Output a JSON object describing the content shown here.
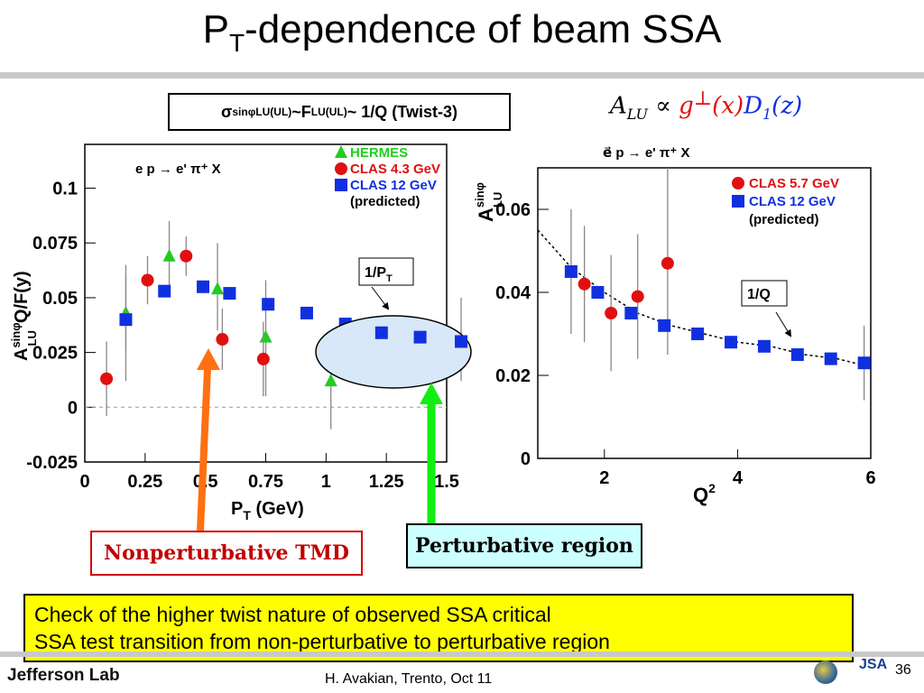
{
  "slide": {
    "title_main": "P",
    "title_sub": "T",
    "title_rest": "-dependence of beam SSA",
    "footer_logo": "Jefferson Lab",
    "footer_text": "H. Avakian, Trento, Oct 11",
    "page_number": "36",
    "jsa_logo": "JSA"
  },
  "formula_box": {
    "sigma": "σ",
    "sin_phi": "sinφ",
    "sub1": "LU(UL)",
    "tilde1": " ~F",
    "sub2": "LU(UL)",
    "rest": "~ 1/Q (Twist-3)"
  },
  "alu_formula": {
    "A": "A",
    "A_sub": "LU",
    "prop": " ∝ ",
    "g": "g",
    "g_sup": "⊥",
    "gx": "(x)",
    "D": "D",
    "D_sub": "1",
    "Dz": "(z)"
  },
  "annotations": {
    "nonperturbative": "Nonperturbative TMD",
    "perturbative": "Perturbative region",
    "summary_line1": "Check of the higher twist nature of observed SSA critical",
    "summary_line2": "SSA test transition from non-perturbative to perturbative region"
  },
  "colors": {
    "hermes": "#22cc22",
    "clas": "#e01010",
    "clas12": "#1030e0",
    "nonpert_arrow": "#ff7010",
    "pert_arrow": "#11ee11",
    "ellipse_fill": "#d8e8f8"
  },
  "chart_data": [
    {
      "type": "scatter",
      "process": "e p → e' π⁺ X",
      "xlabel_main": "P",
      "xlabel_sub": "T",
      "xlabel_unit": " (GeV)",
      "ylabel_A": "A",
      "ylabel_sup": "sinφ",
      "ylabel_sub": "LU",
      "ylabel_rest": "Q/F(y)",
      "xlim": [
        0,
        1.5
      ],
      "ylim": [
        -0.025,
        0.12
      ],
      "x_ticks": [
        "0",
        "0.25",
        "0.5",
        "0.75",
        "1",
        "1.25",
        "1.5"
      ],
      "x_tick_values": [
        0,
        0.25,
        0.5,
        0.75,
        1,
        1.25,
        1.5
      ],
      "y_ticks": [
        "-0.025",
        "0",
        "0.025",
        "0.05",
        "0.075",
        "0.1"
      ],
      "y_tick_values": [
        -0.025,
        0,
        0.025,
        0.05,
        0.075,
        0.1
      ],
      "annotation": "1/P",
      "annotation_sub": "T",
      "series": [
        {
          "name": "HERMES",
          "marker": "triangle",
          "points": [
            {
              "x": 0.17,
              "y": 0.043,
              "lo": 0.026,
              "hi": 0.06
            },
            {
              "x": 0.35,
              "y": 0.069,
              "lo": 0.052,
              "hi": 0.085
            },
            {
              "x": 0.55,
              "y": 0.054,
              "lo": 0.035,
              "hi": 0.075
            },
            {
              "x": 0.75,
              "y": 0.032,
              "lo": 0.005,
              "hi": 0.058
            },
            {
              "x": 1.02,
              "y": 0.012,
              "lo": -0.01,
              "hi": 0.035
            }
          ]
        },
        {
          "name": "CLAS 4.3 GeV",
          "marker": "circle",
          "points": [
            {
              "x": 0.09,
              "y": 0.013,
              "lo": -0.004,
              "hi": 0.03
            },
            {
              "x": 0.26,
              "y": 0.058,
              "lo": 0.047,
              "hi": 0.069
            },
            {
              "x": 0.42,
              "y": 0.069,
              "lo": 0.06,
              "hi": 0.078
            },
            {
              "x": 0.57,
              "y": 0.031,
              "lo": 0.017,
              "hi": 0.045
            },
            {
              "x": 0.74,
              "y": 0.022,
              "lo": 0.005,
              "hi": 0.039
            }
          ]
        },
        {
          "name": "CLAS 12 GeV",
          "name_extra": "(predicted)",
          "marker": "square",
          "points": [
            {
              "x": 0.17,
              "y": 0.04,
              "lo": 0.012,
              "hi": 0.065
            },
            {
              "x": 0.33,
              "y": 0.053,
              "lo": 0.053,
              "hi": 0.053
            },
            {
              "x": 0.49,
              "y": 0.055,
              "lo": 0.055,
              "hi": 0.055
            },
            {
              "x": 0.6,
              "y": 0.052,
              "lo": 0.052,
              "hi": 0.052
            },
            {
              "x": 0.76,
              "y": 0.047,
              "lo": 0.047,
              "hi": 0.047
            },
            {
              "x": 0.92,
              "y": 0.043,
              "lo": 0.043,
              "hi": 0.043
            },
            {
              "x": 1.08,
              "y": 0.038,
              "lo": 0.038,
              "hi": 0.038
            },
            {
              "x": 1.23,
              "y": 0.034,
              "lo": 0.034,
              "hi": 0.034
            },
            {
              "x": 1.39,
              "y": 0.032,
              "lo": 0.032,
              "hi": 0.032
            },
            {
              "x": 1.56,
              "y": 0.03,
              "lo": 0.012,
              "hi": 0.05
            }
          ]
        }
      ]
    },
    {
      "type": "scatter",
      "process": "e⃗ p → e' π⁺ X",
      "xlabel_main": "Q",
      "xlabel_sup": "2",
      "ylabel_A": "A",
      "ylabel_sup": "sinφ",
      "ylabel_sub": "LU",
      "xlim": [
        1,
        6
      ],
      "ylim": [
        0,
        0.07
      ],
      "x_ticks": [
        "2",
        "4",
        "6"
      ],
      "x_tick_values": [
        2,
        4,
        6
      ],
      "y_ticks": [
        "0",
        "0.02",
        "0.04",
        "0.06"
      ],
      "y_tick_values": [
        0,
        0.02,
        0.04,
        0.06
      ],
      "annotation": "1/Q",
      "series": [
        {
          "name": "CLAS 5.7 GeV",
          "marker": "circle",
          "points": [
            {
              "x": 1.7,
              "y": 0.042,
              "lo": 0.028,
              "hi": 0.056
            },
            {
              "x": 2.1,
              "y": 0.035,
              "lo": 0.021,
              "hi": 0.049
            },
            {
              "x": 2.5,
              "y": 0.039,
              "lo": 0.024,
              "hi": 0.054
            },
            {
              "x": 2.95,
              "y": 0.047,
              "lo": 0.025,
              "hi": 0.07
            }
          ]
        },
        {
          "name": "CLAS 12 GeV",
          "name_extra": "(predicted)",
          "marker": "square",
          "points": [
            {
              "x": 1.5,
              "y": 0.045,
              "lo": 0.03,
              "hi": 0.06
            },
            {
              "x": 1.9,
              "y": 0.04,
              "lo": 0.04,
              "hi": 0.04
            },
            {
              "x": 2.4,
              "y": 0.035,
              "lo": 0.035,
              "hi": 0.035
            },
            {
              "x": 2.9,
              "y": 0.032,
              "lo": 0.032,
              "hi": 0.032
            },
            {
              "x": 3.4,
              "y": 0.03,
              "lo": 0.03,
              "hi": 0.03
            },
            {
              "x": 3.9,
              "y": 0.028,
              "lo": 0.028,
              "hi": 0.028
            },
            {
              "x": 4.4,
              "y": 0.027,
              "lo": 0.027,
              "hi": 0.027
            },
            {
              "x": 4.9,
              "y": 0.025,
              "lo": 0.025,
              "hi": 0.025
            },
            {
              "x": 5.4,
              "y": 0.024,
              "lo": 0.024,
              "hi": 0.024
            },
            {
              "x": 5.9,
              "y": 0.023,
              "lo": 0.014,
              "hi": 0.032
            }
          ]
        }
      ],
      "fit_curve": {
        "name": "1/Q",
        "points": [
          [
            1.0,
            0.055
          ],
          [
            1.5,
            0.046
          ],
          [
            2.0,
            0.04
          ],
          [
            2.5,
            0.035
          ],
          [
            3.0,
            0.032
          ],
          [
            3.5,
            0.03
          ],
          [
            4.0,
            0.028
          ],
          [
            4.5,
            0.027
          ],
          [
            5.0,
            0.025
          ],
          [
            5.5,
            0.024
          ],
          [
            6.0,
            0.022
          ]
        ]
      }
    }
  ]
}
